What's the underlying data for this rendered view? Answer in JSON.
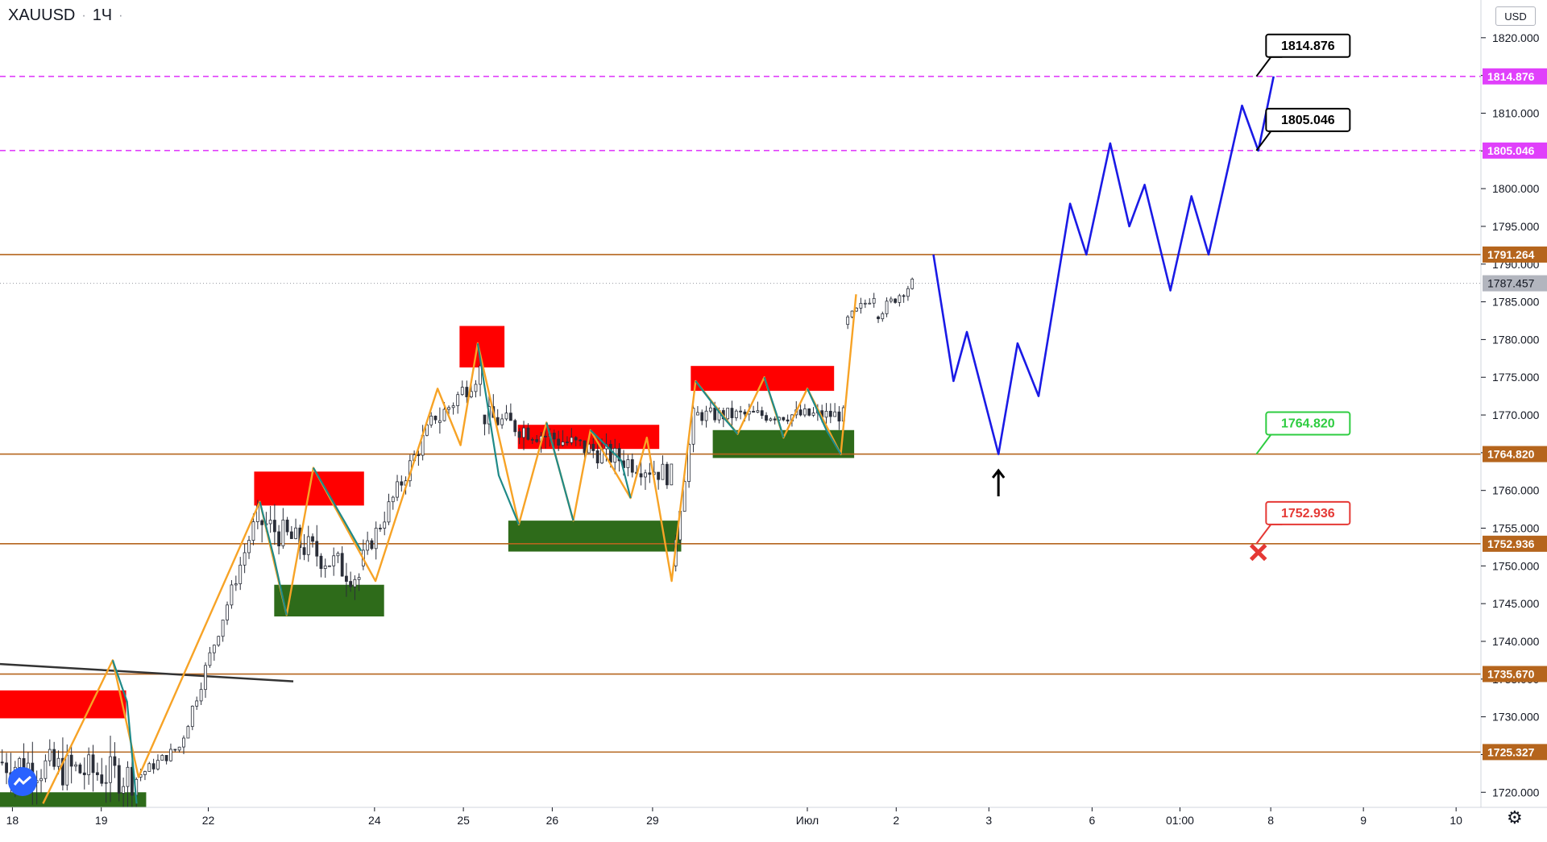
{
  "header": {
    "symbol": "XAUUSD",
    "interval": "1Ч"
  },
  "currency_label": "USD",
  "colors": {
    "brown_level": "#b5651d",
    "magenta_level": "#e040fb",
    "blue_projection": "#1a1ae6",
    "orange_zigzag": "#f7a326",
    "teal_zigzag": "#1f8a88",
    "red_zone": "#ff0000",
    "green_zone": "#2e6b1a",
    "green_label": "#2ecc40",
    "red_label": "#e53935",
    "current_price_bg": "#b2b5be"
  },
  "chart_data": {
    "type": "candlestick",
    "symbol": "XAUUSD",
    "interval": "1Ч",
    "ylim": [
      1718,
      1825
    ],
    "y_ticks": [
      1720,
      1725,
      1730,
      1735,
      1740,
      1745,
      1750,
      1755,
      1760,
      1765,
      1770,
      1775,
      1780,
      1785,
      1790,
      1795,
      1800,
      1805,
      1810,
      1815,
      1820
    ],
    "x_labels": [
      {
        "text": "18",
        "t": 0.13
      },
      {
        "text": "19",
        "t": 1.06
      },
      {
        "text": "22",
        "t": 2.18
      },
      {
        "text": "24",
        "t": 3.92
      },
      {
        "text": "25",
        "t": 4.85
      },
      {
        "text": "26",
        "t": 5.78
      },
      {
        "text": "29",
        "t": 6.83
      },
      {
        "text": "Июл",
        "t": 8.45
      },
      {
        "text": "2",
        "t": 9.38
      },
      {
        "text": "3",
        "t": 10.35
      },
      {
        "text": "6",
        "t": 11.43
      },
      {
        "text": "01:00",
        "t": 12.35
      },
      {
        "text": "8",
        "t": 13.3
      },
      {
        "text": "9",
        "t": 14.27
      },
      {
        "text": "10",
        "t": 15.24
      }
    ],
    "current_price": 1787.457,
    "horizontal_levels": [
      {
        "price": 1814.876,
        "label": "1814.876",
        "style": "magenta-dashed"
      },
      {
        "price": 1805.046,
        "label": "1805.046",
        "style": "magenta-dashed"
      },
      {
        "price": 1791.264,
        "label": "1791.264",
        "style": "brown"
      },
      {
        "price": 1764.82,
        "label": "1764.820",
        "style": "brown"
      },
      {
        "price": 1752.936,
        "label": "1752.936",
        "style": "brown"
      },
      {
        "price": 1735.67,
        "label": "1735.670",
        "style": "brown"
      },
      {
        "price": 1725.327,
        "label": "1725.327",
        "style": "brown"
      }
    ],
    "callouts": [
      {
        "text": "1814.876",
        "color": "black",
        "anchor_t": 13.15,
        "anchor_p": 1814.876
      },
      {
        "text": "1805.046",
        "color": "black",
        "anchor_t": 13.15,
        "anchor_p": 1805.046
      },
      {
        "text": "1764.820",
        "color": "green",
        "anchor_t": 13.15,
        "anchor_p": 1764.82
      },
      {
        "text": "1752.936",
        "color": "red",
        "anchor_t": 13.15,
        "anchor_p": 1752.936
      }
    ],
    "supply_zones": [
      {
        "t0": 0.0,
        "t1": 1.32,
        "p_top": 1733.5,
        "p_bottom": 1729.8
      },
      {
        "t0": 2.66,
        "t1": 3.81,
        "p_top": 1762.5,
        "p_bottom": 1758.0
      },
      {
        "t0": 4.81,
        "t1": 5.28,
        "p_top": 1781.8,
        "p_bottom": 1776.3
      },
      {
        "t0": 5.42,
        "t1": 6.9,
        "p_top": 1768.7,
        "p_bottom": 1765.5
      },
      {
        "t0": 7.23,
        "t1": 8.73,
        "p_top": 1776.5,
        "p_bottom": 1773.2
      }
    ],
    "demand_zones": [
      {
        "t0": 0.0,
        "t1": 1.53,
        "p_top": 1720.0,
        "p_bottom": 1718.0
      },
      {
        "t0": 2.87,
        "t1": 4.02,
        "p_top": 1747.5,
        "p_bottom": 1743.3
      },
      {
        "t0": 5.32,
        "t1": 7.13,
        "p_top": 1756.0,
        "p_bottom": 1751.9
      },
      {
        "t0": 7.46,
        "t1": 8.94,
        "p_top": 1768.0,
        "p_bottom": 1764.3
      }
    ],
    "trendline": [
      [
        0.0,
        1737.0
      ],
      [
        3.07,
        1734.7
      ]
    ],
    "orange_zigzag": [
      [
        0.45,
        1718.5
      ],
      [
        1.18,
        1737.5
      ],
      [
        1.45,
        1722.0
      ],
      [
        2.72,
        1758.5
      ],
      [
        3.0,
        1743.5
      ],
      [
        3.28,
        1763.0
      ],
      [
        3.93,
        1748.0
      ],
      [
        4.58,
        1773.5
      ],
      [
        4.82,
        1766.0
      ],
      [
        5.0,
        1779.5
      ],
      [
        5.43,
        1755.5
      ],
      [
        5.72,
        1769.0
      ],
      [
        6.0,
        1756.0
      ],
      [
        6.18,
        1768.0
      ],
      [
        6.6,
        1759.0
      ],
      [
        6.77,
        1767.0
      ],
      [
        7.03,
        1748.0
      ],
      [
        7.28,
        1774.5
      ],
      [
        7.72,
        1767.5
      ],
      [
        8.0,
        1775.0
      ],
      [
        8.2,
        1767.0
      ],
      [
        8.45,
        1773.5
      ],
      [
        8.8,
        1764.8
      ],
      [
        8.96,
        1786.0
      ]
    ],
    "teal_zigzag": [
      [
        1.18,
        1737.5
      ],
      [
        1.33,
        1732.0
      ],
      [
        1.43,
        1718.5
      ],
      [
        2.72,
        1758.5
      ],
      [
        2.87,
        1751.0
      ],
      [
        3.0,
        1743.5
      ],
      [
        3.28,
        1763.0
      ],
      [
        3.6,
        1756.0
      ],
      [
        3.78,
        1752.0
      ],
      [
        5.0,
        1779.5
      ],
      [
        5.22,
        1762.0
      ],
      [
        5.43,
        1755.5
      ],
      [
        5.72,
        1769.0
      ],
      [
        5.86,
        1762.5
      ],
      [
        6.0,
        1756.0
      ],
      [
        6.18,
        1768.0
      ],
      [
        6.5,
        1764.0
      ],
      [
        6.6,
        1759.0
      ],
      [
        7.28,
        1774.5
      ],
      [
        7.55,
        1770.0
      ],
      [
        7.72,
        1767.5
      ],
      [
        8.0,
        1775.0
      ],
      [
        8.13,
        1770.0
      ],
      [
        8.2,
        1767.0
      ],
      [
        8.45,
        1773.5
      ],
      [
        8.65,
        1768.0
      ],
      [
        8.8,
        1764.8
      ]
    ],
    "projection_path": [
      [
        9.77,
        1791.264
      ],
      [
        9.98,
        1774.5
      ],
      [
        10.12,
        1781.0
      ],
      [
        10.45,
        1764.82
      ],
      [
        10.65,
        1779.5
      ],
      [
        10.87,
        1772.5
      ],
      [
        11.2,
        1798.0
      ],
      [
        11.37,
        1791.264
      ],
      [
        11.62,
        1806.0
      ],
      [
        11.82,
        1795.0
      ],
      [
        11.98,
        1800.5
      ],
      [
        12.25,
        1786.5
      ],
      [
        12.47,
        1799.0
      ],
      [
        12.65,
        1791.264
      ],
      [
        13.0,
        1811.0
      ],
      [
        13.17,
        1805.046
      ],
      [
        13.33,
        1814.876
      ]
    ],
    "marker_up_arrow": {
      "t": 10.45,
      "p": 1762.0
    },
    "marker_x": {
      "t": 13.17,
      "p": 1751.8
    },
    "candle_segments": [
      {
        "t0": 0.0,
        "t1": 1.45,
        "start": 1724.0,
        "end": 1722.0,
        "trend": 0.0,
        "wiggle": 5.0
      },
      {
        "t0": 1.45,
        "t1": 1.9,
        "start": 1722.0,
        "end": 1726.0,
        "trend": 0.0,
        "wiggle": 1.5
      },
      {
        "t0": 1.9,
        "t1": 2.72,
        "start": 1726.0,
        "end": 1757.0,
        "trend": 1.0,
        "wiggle": 2.0
      },
      {
        "t0": 2.72,
        "t1": 3.78,
        "start": 1756.0,
        "end": 1748.5,
        "trend": 0.0,
        "wiggle": 4.0
      },
      {
        "t0": 3.78,
        "t1": 4.58,
        "start": 1750.0,
        "end": 1770.0,
        "trend": 1.0,
        "wiggle": 2.5
      },
      {
        "t0": 4.58,
        "t1": 5.05,
        "start": 1769.0,
        "end": 1776.0,
        "trend": 0.0,
        "wiggle": 3.0
      },
      {
        "t0": 5.05,
        "t1": 7.05,
        "start": 1770.0,
        "end": 1762.0,
        "trend": 0.0,
        "wiggle": 3.0
      },
      {
        "t0": 7.05,
        "t1": 7.28,
        "start": 1750.0,
        "end": 1770.0,
        "trend": 1.0,
        "wiggle": 2.0
      },
      {
        "t0": 7.28,
        "t1": 8.85,
        "start": 1770.0,
        "end": 1770.0,
        "trend": 0.0,
        "wiggle": 2.0
      },
      {
        "t0": 8.85,
        "t1": 9.17,
        "start": 1782.0,
        "end": 1786.0,
        "trend": 1.0,
        "wiggle": 1.5
      },
      {
        "t0": 9.17,
        "t1": 9.57,
        "start": 1783.0,
        "end": 1787.457,
        "trend": 1.0,
        "wiggle": 1.5
      }
    ]
  }
}
